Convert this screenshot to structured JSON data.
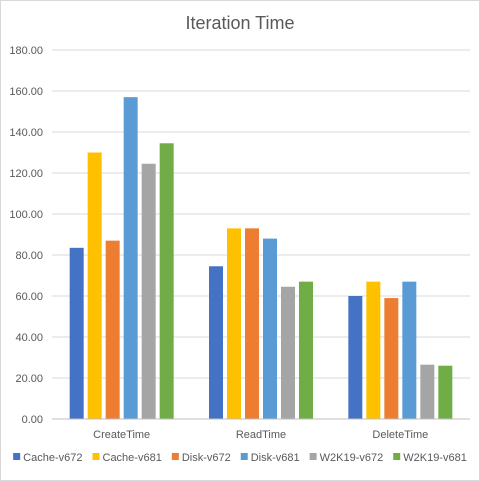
{
  "chart_data": {
    "type": "bar",
    "title": "Iteration Time",
    "xlabel": "",
    "ylabel": "",
    "categories": [
      "CreateTime",
      "ReadTime",
      "DeleteTime"
    ],
    "ylim": [
      0,
      180
    ],
    "yticks": [
      0,
      20,
      40,
      60,
      80,
      100,
      120,
      140,
      160,
      180
    ],
    "ytick_labels": [
      "0.00",
      "20.00",
      "40.00",
      "60.00",
      "80.00",
      "100.00",
      "120.00",
      "140.00",
      "160.00",
      "180.00"
    ],
    "grid": true,
    "legend_position": "bottom",
    "series": [
      {
        "name": "Cache-v672",
        "color": "#4472c4",
        "values": [
          83.5,
          74.5,
          60.0
        ]
      },
      {
        "name": "Cache-v681",
        "color": "#ffc000",
        "values": [
          130.0,
          93.0,
          67.0
        ]
      },
      {
        "name": "Disk-v672",
        "color": "#ed7d31",
        "values": [
          87.0,
          93.0,
          59.0
        ]
      },
      {
        "name": "Disk-v681",
        "color": "#5b9bd5",
        "values": [
          157.0,
          88.0,
          67.0
        ]
      },
      {
        "name": "W2K19-v672",
        "color": "#a5a5a5",
        "values": [
          124.5,
          64.5,
          26.5
        ]
      },
      {
        "name": "W2K19-v681",
        "color": "#70ad47",
        "values": [
          134.5,
          67.0,
          26.0
        ]
      }
    ]
  }
}
